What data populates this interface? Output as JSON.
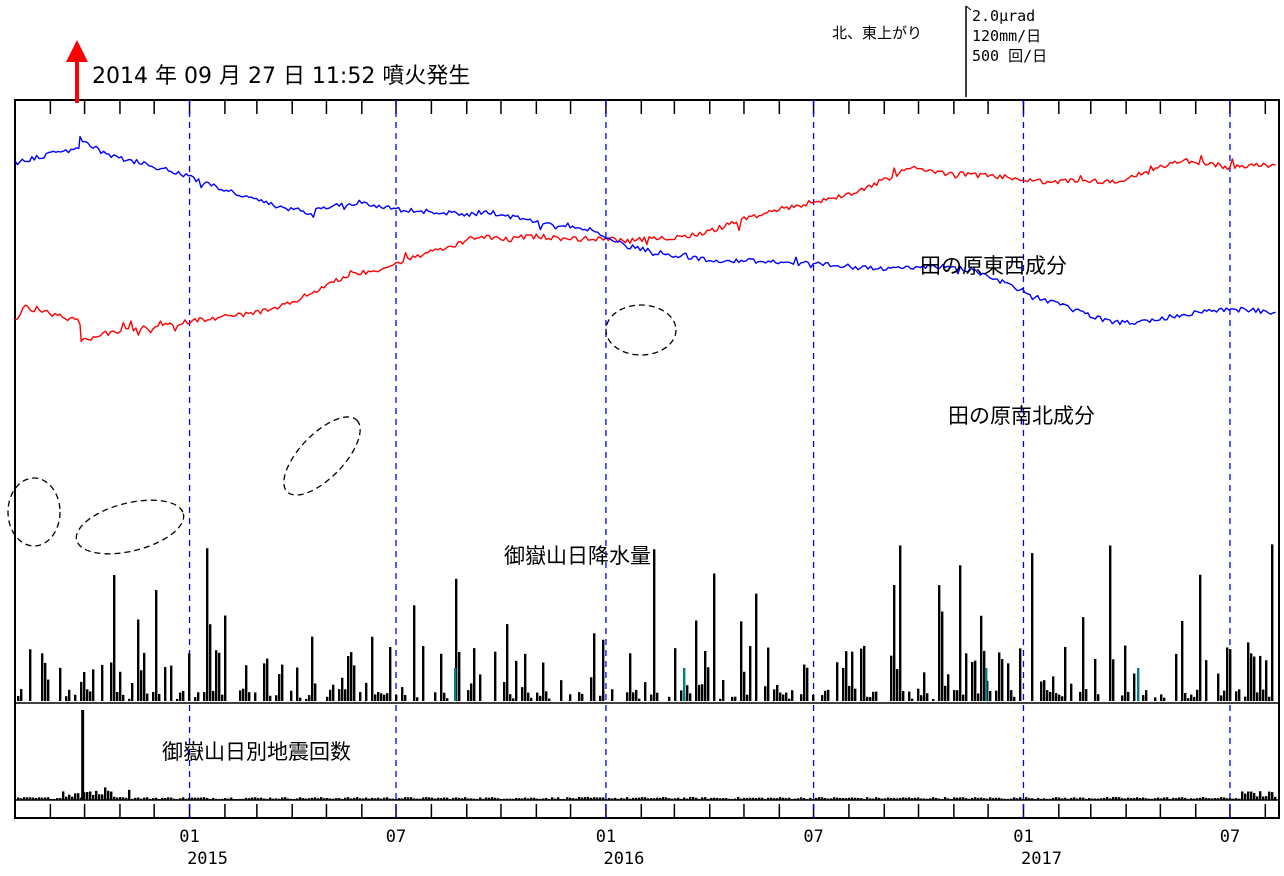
{
  "header": {
    "eruption_label": "2014 年 09 月 27 日 11:52 噴火発生"
  },
  "scale_box": {
    "direction_label": "北、東上がり",
    "tilt_scale": "2.0μrad",
    "rain_scale": "120mm/日",
    "quake_scale": "500 回/日"
  },
  "chart_data": {
    "type": "line",
    "x_range": [
      "2014-08",
      "2017-08"
    ],
    "month_ticks": 37,
    "x_ticks": [
      {
        "month": "01",
        "year": "2015",
        "date": "2015-01-01"
      },
      {
        "month": "07",
        "year": "",
        "date": "2015-07-01"
      },
      {
        "month": "01",
        "year": "2016",
        "date": "2016-01-01"
      },
      {
        "month": "07",
        "year": "",
        "date": "2016-07-01"
      },
      {
        "month": "01",
        "year": "2017",
        "date": "2017-01-01"
      },
      {
        "month": "07",
        "year": "",
        "date": "2017-07-01"
      }
    ],
    "eruption_date": "2014-09-27 11:52",
    "series": [
      {
        "name": "田の原東西成分",
        "color": "#ff0000",
        "unit": "μrad",
        "x": [
          "2014-08-01",
          "2014-08-10",
          "2014-08-20",
          "2014-09-05",
          "2014-09-27",
          "2014-09-28",
          "2014-10-15",
          "2014-11-15",
          "2014-12-15",
          "2015-01-10",
          "2015-02-15",
          "2015-03-15",
          "2015-04-01",
          "2015-05-01",
          "2015-05-20",
          "2015-06-20",
          "2015-07-20",
          "2015-08-20",
          "2015-09-10",
          "2015-10-01",
          "2015-11-01",
          "2015-12-01",
          "2016-01-01",
          "2016-01-20",
          "2016-02-10",
          "2016-03-10",
          "2016-04-01",
          "2016-05-01",
          "2016-06-01",
          "2016-07-01",
          "2016-08-01",
          "2016-09-01",
          "2016-09-25",
          "2016-10-20",
          "2016-11-20",
          "2016-12-20",
          "2017-01-20",
          "2017-02-20",
          "2017-03-20",
          "2017-04-10",
          "2017-05-01",
          "2017-05-20",
          "2017-06-10",
          "2017-07-01",
          "2017-07-20",
          "2017-08-10"
        ],
        "values": [
          -5.7,
          -5.2,
          -5.3,
          -5.5,
          -5.8,
          -6.6,
          -6.3,
          -6.1,
          -5.9,
          -5.7,
          -5.5,
          -5.3,
          -5.0,
          -4.3,
          -3.9,
          -3.6,
          -3.1,
          -2.7,
          -2.3,
          -2.4,
          -2.3,
          -2.4,
          -2.4,
          -2.5,
          -2.4,
          -2.3,
          -2.1,
          -1.6,
          -1.2,
          -0.9,
          -0.6,
          0.0,
          0.5,
          0.3,
          0.2,
          0.1,
          -0.1,
          0.0,
          -0.1,
          0.2,
          0.5,
          0.8,
          0.7,
          0.5,
          0.6,
          0.6
        ]
      },
      {
        "name": "田の原南北成分",
        "color": "#0000ff",
        "unit": "μrad",
        "x": [
          "2014-08-01",
          "2014-08-20",
          "2014-09-10",
          "2014-09-26",
          "2014-09-27",
          "2014-10-20",
          "2014-11-20",
          "2014-12-20",
          "2015-01-20",
          "2015-02-20",
          "2015-03-20",
          "2015-04-15",
          "2015-05-10",
          "2015-06-01",
          "2015-07-01",
          "2015-08-01",
          "2015-09-01",
          "2015-09-20",
          "2015-10-20",
          "2015-11-20",
          "2015-12-20",
          "2016-01-01",
          "2016-01-20",
          "2016-02-20",
          "2016-03-20",
          "2016-04-20",
          "2016-05-20",
          "2016-06-20",
          "2016-07-20",
          "2016-08-20",
          "2016-09-20",
          "2016-10-20",
          "2016-11-20",
          "2016-12-20",
          "2017-01-20",
          "2017-02-20",
          "2017-03-20",
          "2017-04-15",
          "2017-05-20",
          "2017-06-15",
          "2017-07-15",
          "2017-08-10"
        ],
        "values": [
          0.7,
          0.9,
          1.2,
          1.2,
          1.7,
          1.0,
          0.7,
          0.3,
          -0.2,
          -0.7,
          -1.1,
          -1.3,
          -1.0,
          -0.9,
          -1.2,
          -1.3,
          -1.4,
          -1.3,
          -1.6,
          -1.8,
          -2.0,
          -2.4,
          -2.7,
          -3.0,
          -3.2,
          -3.3,
          -3.3,
          -3.4,
          -3.5,
          -3.6,
          -3.6,
          -3.5,
          -3.7,
          -4.3,
          -4.9,
          -5.4,
          -5.8,
          -5.8,
          -5.5,
          -5.3,
          -5.3,
          -5.4
        ]
      }
    ],
    "dashed_gridlines": [
      "2015-01",
      "2015-07",
      "2016-01",
      "2016-07",
      "2017-01",
      "2017-07"
    ]
  },
  "annotations": {
    "label_ew": "田の原東西成分",
    "label_ns": "田の原南北成分",
    "label_rain": "御嶽山日降水量",
    "label_quake": "御嶽山日別地震回数"
  }
}
